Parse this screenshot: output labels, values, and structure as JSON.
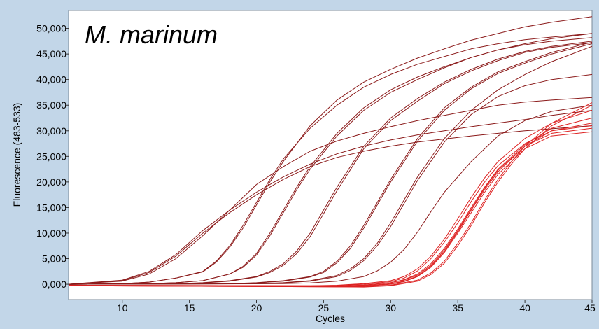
{
  "chart_data": {
    "type": "line",
    "title": "M. marinum",
    "xlabel": "Cycles",
    "ylabel": "Fluorescence (483-533)",
    "xlim": [
      6,
      45
    ],
    "ylim": [
      -3000,
      53500
    ],
    "x_ticks": [
      10,
      15,
      20,
      25,
      30,
      35,
      40,
      45
    ],
    "x_tick_labels": [
      "10",
      "15",
      "20",
      "25",
      "30",
      "35",
      "40",
      "45"
    ],
    "y_ticks": [
      0,
      5000,
      10000,
      15000,
      20000,
      25000,
      30000,
      35000,
      40000,
      45000,
      50000
    ],
    "y_tick_labels": [
      "0,000",
      "5,000",
      "10,000",
      "15,000",
      "20,000",
      "25,000",
      "30,000",
      "35,000",
      "40,000",
      "45,000",
      "50,000"
    ],
    "grid": false,
    "legend": "none",
    "colors": {
      "plot_background": "#ffffff",
      "frame_background": "#c2d6e8",
      "series_dark": "#8b1a1a",
      "series_red": "#dd2222"
    },
    "series": [
      {
        "color": "#8b1a1a",
        "x": [
          6,
          10,
          12,
          14,
          16,
          18,
          20,
          22,
          24,
          26,
          28,
          30,
          32,
          34,
          36,
          38,
          40,
          42,
          45
        ],
        "y": [
          0,
          800,
          2500,
          5800,
          10500,
          14500,
          18000,
          21000,
          23500,
          25500,
          27000,
          28200,
          29200,
          30000,
          30800,
          31500,
          32200,
          33000,
          34000
        ]
      },
      {
        "color": "#8b1a1a",
        "x": [
          6,
          10,
          12,
          14,
          16,
          18,
          20,
          22,
          24,
          26,
          28,
          30,
          32,
          34,
          36,
          38,
          40,
          42,
          45
        ],
        "y": [
          0,
          700,
          2300,
          5500,
          10000,
          14000,
          17500,
          20500,
          23000,
          24800,
          26000,
          27000,
          27800,
          28400,
          29000,
          29500,
          30000,
          30400,
          31000
        ]
      },
      {
        "color": "#8b1a1a",
        "x": [
          6,
          10,
          12,
          14,
          16,
          18,
          20,
          22,
          24,
          26,
          28,
          30,
          32,
          34,
          36,
          38,
          40,
          42,
          45
        ],
        "y": [
          0,
          600,
          2000,
          5000,
          9500,
          14500,
          19500,
          23000,
          26000,
          28000,
          29500,
          30800,
          32000,
          33000,
          34000,
          35000,
          35600,
          36000,
          36500
        ]
      },
      {
        "color": "#8b1a1a",
        "x": [
          6,
          10,
          12,
          14,
          16,
          17,
          18,
          19,
          20,
          21,
          22,
          24,
          26,
          28,
          30,
          32,
          34,
          36,
          38,
          40,
          42,
          45
        ],
        "y": [
          0,
          100,
          400,
          1200,
          2500,
          4500,
          7500,
          11500,
          16000,
          20500,
          24500,
          30500,
          35000,
          38500,
          41000,
          43000,
          44500,
          46000,
          47000,
          47800,
          48300,
          49000
        ]
      },
      {
        "color": "#8b1a1a",
        "x": [
          6,
          10,
          12,
          14,
          16,
          17,
          18,
          19,
          20,
          21,
          22,
          24,
          26,
          28,
          30,
          32,
          34,
          36,
          38,
          40,
          42,
          45
        ],
        "y": [
          0,
          100,
          400,
          1200,
          2400,
          4300,
          7200,
          11000,
          15500,
          20000,
          24000,
          31000,
          36000,
          39500,
          42000,
          44200,
          46000,
          47700,
          49000,
          50300,
          51200,
          52300
        ]
      },
      {
        "color": "#8b1a1a",
        "x": [
          6,
          12,
          14,
          16,
          18,
          19,
          20,
          21,
          22,
          23,
          24,
          26,
          28,
          30,
          32,
          34,
          36,
          38,
          40,
          42,
          45
        ],
        "y": [
          0,
          100,
          300,
          700,
          2000,
          3500,
          6000,
          10000,
          14500,
          19000,
          23000,
          29500,
          34500,
          38000,
          40500,
          42500,
          44300,
          45800,
          46800,
          47500,
          48200
        ]
      },
      {
        "color": "#8b1a1a",
        "x": [
          6,
          12,
          14,
          16,
          18,
          19,
          20,
          21,
          22,
          23,
          24,
          26,
          28,
          30,
          32,
          34,
          36,
          38,
          40,
          42,
          45
        ],
        "y": [
          0,
          100,
          300,
          700,
          2000,
          3300,
          5700,
          9500,
          14000,
          18500,
          22500,
          29000,
          34000,
          37500,
          40000,
          42300,
          44300,
          45800,
          47000,
          48000,
          49000
        ]
      },
      {
        "color": "#8b1a1a",
        "x": [
          6,
          14,
          16,
          18,
          20,
          21,
          22,
          23,
          24,
          25,
          26,
          28,
          30,
          32,
          34,
          36,
          38,
          40,
          42,
          45
        ],
        "y": [
          0,
          100,
          300,
          700,
          1500,
          2500,
          4000,
          6500,
          10000,
          14500,
          19000,
          27000,
          32500,
          36300,
          39500,
          42000,
          44000,
          45500,
          46500,
          47500
        ]
      },
      {
        "color": "#8b1a1a",
        "x": [
          6,
          14,
          16,
          18,
          20,
          21,
          22,
          23,
          24,
          25,
          26,
          28,
          30,
          32,
          34,
          36,
          38,
          40,
          42,
          45
        ],
        "y": [
          0,
          100,
          250,
          600,
          1400,
          2300,
          3700,
          6000,
          9300,
          13800,
          18300,
          26500,
          32000,
          35800,
          39200,
          41700,
          43700,
          45300,
          46300,
          47200
        ]
      },
      {
        "color": "#8b1a1a",
        "x": [
          6,
          18,
          20,
          22,
          24,
          25,
          26,
          27,
          28,
          29,
          30,
          32,
          34,
          36,
          38,
          40,
          42,
          45
        ],
        "y": [
          0,
          100,
          300,
          700,
          1500,
          2500,
          4500,
          7500,
          11500,
          16000,
          20500,
          28500,
          34500,
          38500,
          41500,
          43500,
          45300,
          47300
        ]
      },
      {
        "color": "#8b1a1a",
        "x": [
          6,
          18,
          20,
          22,
          24,
          25,
          26,
          27,
          28,
          29,
          30,
          32,
          34,
          36,
          38,
          40,
          42,
          45
        ],
        "y": [
          0,
          80,
          250,
          600,
          1400,
          2300,
          4200,
          7000,
          11000,
          15500,
          20000,
          28000,
          34000,
          38200,
          41200,
          43200,
          45000,
          47000
        ]
      },
      {
        "color": "#8b1a1a",
        "x": [
          6,
          20,
          22,
          24,
          26,
          27,
          28,
          29,
          30,
          31,
          32,
          34,
          36,
          38,
          40,
          42,
          45
        ],
        "y": [
          0,
          100,
          300,
          700,
          1700,
          3000,
          5000,
          8000,
          12000,
          16500,
          21000,
          28500,
          34000,
          38000,
          41000,
          43500,
          46500
        ]
      },
      {
        "color": "#8b1a1a",
        "x": [
          6,
          20,
          22,
          24,
          26,
          27,
          28,
          29,
          30,
          31,
          32,
          34,
          36,
          38,
          40,
          42,
          45
        ],
        "y": [
          0,
          80,
          250,
          600,
          1500,
          2700,
          4600,
          7500,
          11300,
          15800,
          20300,
          27800,
          33200,
          36700,
          38800,
          40000,
          41000
        ]
      },
      {
        "color": "#8b1a1a",
        "x": [
          6,
          22,
          24,
          26,
          28,
          29,
          30,
          31,
          32,
          33,
          34,
          36,
          38,
          40,
          42,
          45
        ],
        "y": [
          0,
          100,
          250,
          600,
          1500,
          2600,
          4300,
          6800,
          10200,
          14200,
          18000,
          24000,
          29000,
          32000,
          33800,
          35000
        ]
      },
      {
        "color": "#dd2222",
        "x": [
          6,
          24,
          26,
          28,
          30,
          31,
          32,
          33,
          34,
          35,
          36,
          37,
          38,
          40,
          42,
          45
        ],
        "y": [
          -200,
          -300,
          -200,
          100,
          700,
          1500,
          3000,
          5500,
          8800,
          12800,
          17000,
          20800,
          24000,
          28500,
          31500,
          34000
        ]
      },
      {
        "color": "#dd2222",
        "x": [
          6,
          24,
          26,
          28,
          30,
          31,
          32,
          33,
          34,
          35,
          36,
          37,
          38,
          40,
          42,
          45
        ],
        "y": [
          -200,
          -300,
          -250,
          0,
          500,
          1200,
          2600,
          5000,
          8200,
          12000,
          16200,
          20000,
          23200,
          27500,
          30000,
          31500
        ]
      },
      {
        "color": "#dd2222",
        "x": [
          6,
          24,
          26,
          28,
          30,
          31,
          32,
          33,
          34,
          35,
          36,
          37,
          38,
          40,
          42,
          45
        ],
        "y": [
          -200,
          -350,
          -350,
          -150,
          300,
          900,
          2000,
          4000,
          7000,
          10800,
          15000,
          19000,
          22500,
          27300,
          30500,
          32500
        ]
      },
      {
        "color": "#dd2222",
        "x": [
          6,
          26,
          28,
          30,
          31,
          32,
          33,
          34,
          35,
          36,
          37,
          38,
          40,
          42,
          45
        ],
        "y": [
          -300,
          -400,
          -200,
          300,
          800,
          1800,
          3700,
          6700,
          10500,
          14700,
          18800,
          22300,
          27000,
          29500,
          30500
        ]
      },
      {
        "color": "#dd2222",
        "x": [
          6,
          26,
          28,
          30,
          31,
          32,
          33,
          34,
          35,
          36,
          37,
          38,
          40,
          42,
          45
        ],
        "y": [
          -300,
          -500,
          -400,
          0,
          500,
          1500,
          3300,
          6200,
          10000,
          14000,
          18000,
          21500,
          26500,
          29000,
          29800
        ]
      },
      {
        "color": "#dd2222",
        "x": [
          6,
          26,
          28,
          30,
          31,
          32,
          33,
          34,
          35,
          36,
          37,
          38,
          40,
          42,
          45
        ],
        "y": [
          -300,
          -450,
          -300,
          100,
          600,
          1600,
          3500,
          6400,
          10300,
          14500,
          18500,
          22000,
          27000,
          30000,
          31000
        ]
      },
      {
        "color": "#dd2222",
        "x": [
          6,
          26,
          28,
          30,
          32,
          33,
          34,
          35,
          36,
          37,
          38,
          39,
          40,
          42,
          45
        ],
        "y": [
          -300,
          -500,
          -500,
          -200,
          800,
          2200,
          4500,
          8000,
          12000,
          16500,
          20500,
          24000,
          27000,
          31500,
          35500
        ]
      },
      {
        "color": "#dd2222",
        "x": [
          6,
          26,
          28,
          30,
          32,
          33,
          34,
          35,
          36,
          37,
          38,
          39,
          40,
          42,
          45
        ],
        "y": [
          -300,
          -500,
          -550,
          -300,
          600,
          1900,
          4100,
          7500,
          11500,
          16000,
          20000,
          23500,
          26500,
          31000,
          35000
        ]
      }
    ]
  }
}
